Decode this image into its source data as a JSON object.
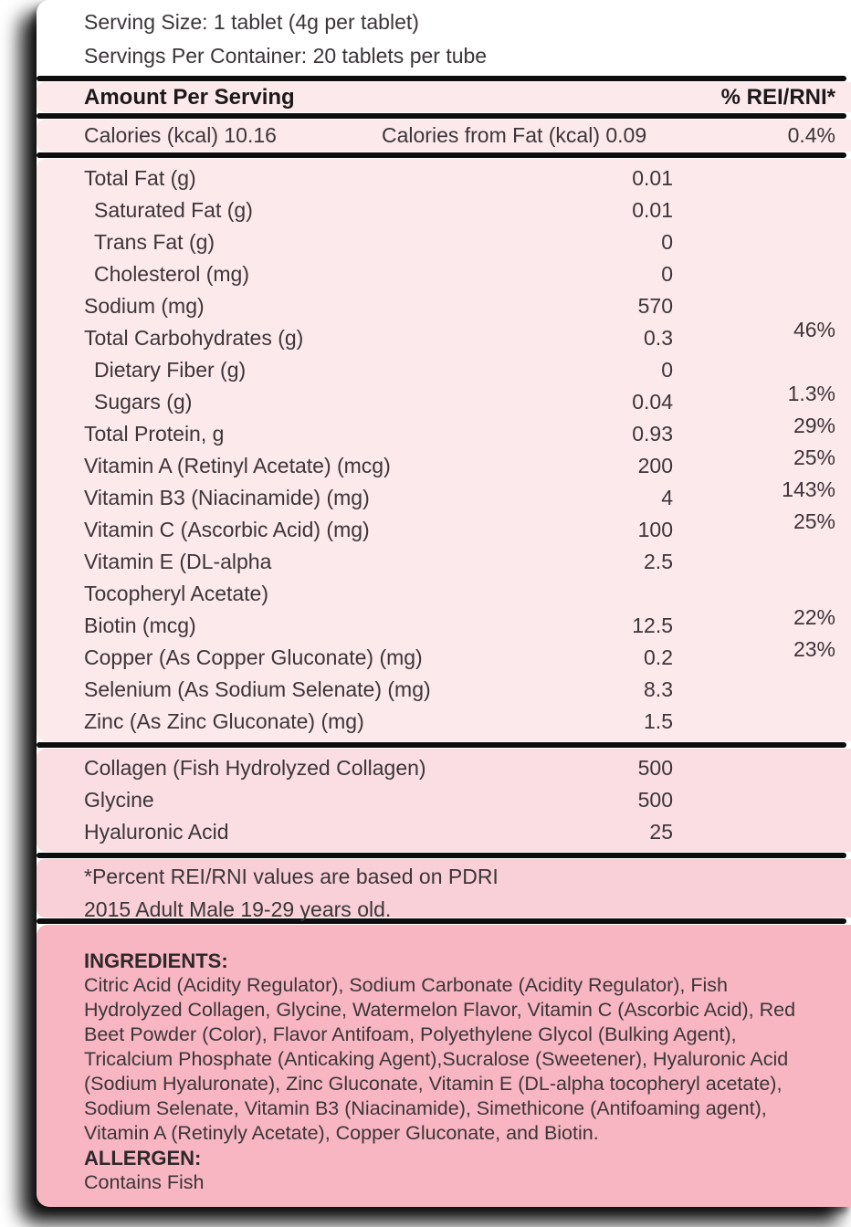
{
  "colors": {
    "light_pink": "#fce9ec",
    "collagen_pink": "#fadee4",
    "footnote_pink": "#f9cfd8",
    "ingredients_pink": "#f7b6c1",
    "separator": "#0e0d0d",
    "text": "#3c3539"
  },
  "serving": {
    "size_line": "Serving Size: 1 tablet (4g per tablet)",
    "container_line": "Servings Per Container: 20 tablets per tube"
  },
  "table": {
    "header": {
      "amount_label": "Amount Per Serving",
      "pct_label": "% REI/RNI*"
    },
    "calories": {
      "label": "Calories (kcal) 10.16",
      "fat_label": "Calories from Fat (kcal) 0.09",
      "pct": "0.4%"
    },
    "nutrients": [
      {
        "name": "Total Fat (g)",
        "value": "0.01",
        "pct": "",
        "indent": false
      },
      {
        "name": "Saturated Fat (g)",
        "value": "0.01",
        "pct": "",
        "indent": true
      },
      {
        "name": "Trans Fat (g)",
        "value": "0",
        "pct": "",
        "indent": true
      },
      {
        "name": "Cholesterol (mg)",
        "value": "0",
        "pct": "",
        "indent": true
      },
      {
        "name": "Sodium (mg)",
        "value": "570",
        "pct": "",
        "indent": false
      },
      {
        "name": "Total Carbohydrates (g)",
        "value": "0.3",
        "pct": "46%",
        "indent": false
      },
      {
        "name": "Dietary Fiber (g)",
        "value": "0",
        "pct": "",
        "indent": true
      },
      {
        "name": "Sugars (g)",
        "value": "0.04",
        "pct": "1.3%",
        "indent": true
      },
      {
        "name": "Total Protein, g",
        "value": "0.93",
        "pct": "29%",
        "indent": false
      },
      {
        "name": "Vitamin A (Retinyl Acetate) (mcg)",
        "value": "200",
        "pct": "25%",
        "indent": false
      },
      {
        "name": "Vitamin B3 (Niacinamide) (mg)",
        "value": "4",
        "pct": "143%",
        "indent": false
      },
      {
        "name": "Vitamin C (Ascorbic Acid) (mg)",
        "value": "100",
        "pct": "25%",
        "indent": false
      },
      {
        "name": "Vitamin E (DL-alpha",
        "value": "2.5",
        "pct": "",
        "indent": false
      },
      {
        "name": "Tocopheryl Acetate)",
        "value": "",
        "pct": "",
        "indent": false
      },
      {
        "name": "Biotin (mcg)",
        "value": "12.5",
        "pct": "22%",
        "indent": false
      },
      {
        "name": "Copper (As Copper Gluconate) (mg)",
        "value": "0.2",
        "pct": "23%",
        "indent": false
      },
      {
        "name": "Selenium (As Sodium Selenate) (mg)",
        "value": "8.3",
        "pct": "",
        "indent": false
      },
      {
        "name": "Zinc (As Zinc Gluconate) (mg)",
        "value": "1.5",
        "pct": "",
        "indent": false
      }
    ],
    "actives": [
      {
        "name": "Collagen (Fish Hydrolyzed Collagen)",
        "value": "500",
        "pct": ""
      },
      {
        "name": "Glycine",
        "value": "500",
        "pct": ""
      },
      {
        "name": "Hyaluronic Acid",
        "value": "25",
        "pct": ""
      }
    ]
  },
  "footnote": {
    "line1": "*Percent REI/RNI values are based on PDRI",
    "line2": "2015 Adult Male 19-29 years old."
  },
  "ingredients": {
    "title": "INGREDIENTS:",
    "text": "Citric Acid (Acidity Regulator), Sodium Carbonate (Acidity Regulator), Fish Hydrolyzed Collagen, Glycine, Watermelon Flavor, Vitamin C (Ascorbic Acid), Red Beet Powder (Color), Flavor Antifoam, Polyethylene Glycol (Bulking Agent), Tricalcium Phosphate (Anticaking Agent),Sucralose (Sweetener), Hyaluronic Acid (Sodium Hyaluronate), Zinc Gluconate, Vitamin E (DL-alpha tocopheryl acetate), Sodium Selenate, Vitamin B3 (Niacinamide), Simethicone (Antifoaming agent), Vitamin A (Retinyly Acetate), Copper Gluconate, and Biotin."
  },
  "allergen": {
    "title": "ALLERGEN:",
    "text": "Contains Fish"
  }
}
